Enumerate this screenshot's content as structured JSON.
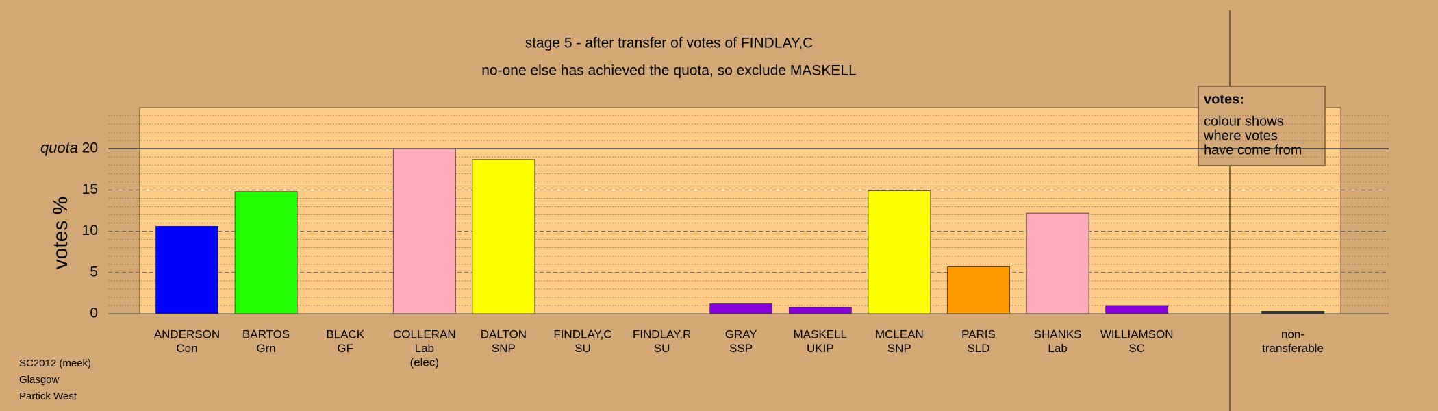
{
  "chart_data": {
    "type": "bar",
    "title": "stage 5 - after transfer of votes of FINDLAY,C",
    "subtitle": "no-one else has achieved the quota, so exclude MASKELL",
    "y_label": "votes %",
    "quota_label": "quota",
    "quota": 20,
    "categories": [
      [
        "ANDERSON",
        "Con"
      ],
      [
        "BARTOS",
        "Grn"
      ],
      [
        "BLACK",
        "GF"
      ],
      [
        "COLLERAN",
        "Lab",
        "(elec)"
      ],
      [
        "DALTON",
        "SNP"
      ],
      [
        "FINDLAY,C",
        "SU"
      ],
      [
        "FINDLAY,R",
        "SU"
      ],
      [
        "GRAY",
        "SSP"
      ],
      [
        "MASKELL",
        "UKIP"
      ],
      [
        "MCLEAN",
        "SNP"
      ],
      [
        "PARIS",
        "SLD"
      ],
      [
        "SHANKS",
        "Lab"
      ],
      [
        "WILLIAMSON",
        "SC"
      ],
      [
        "non-",
        "transferable"
      ]
    ],
    "values": [
      10.6,
      14.8,
      0,
      20.0,
      18.7,
      0,
      0,
      1.2,
      0.8,
      14.9,
      5.7,
      12.2,
      1.0,
      0.3
    ],
    "colors": [
      "#0000ff",
      "#22ff00",
      "#ffaabb",
      "#ffaabb",
      "#ffff00",
      "#ffaabb",
      "#ffaabb",
      "#8800dd",
      "#8800dd",
      "#ffff00",
      "#ff9900",
      "#ffaabb",
      "#8800dd",
      "#333333"
    ],
    "ylim": [
      0,
      25
    ],
    "yticks": [
      0,
      5,
      10,
      15,
      20
    ],
    "minor_yticks": [
      1,
      2,
      3,
      4,
      6,
      7,
      8,
      9,
      11,
      12,
      13,
      14,
      16,
      17,
      18,
      19,
      21,
      22,
      23,
      24
    ],
    "grid": true,
    "legend": {
      "title": "votes:",
      "lines": [
        "colour shows",
        "where votes",
        "have come from"
      ]
    },
    "footer": [
      "SC2012 (meek)",
      "Glasgow",
      "Partick West"
    ]
  }
}
